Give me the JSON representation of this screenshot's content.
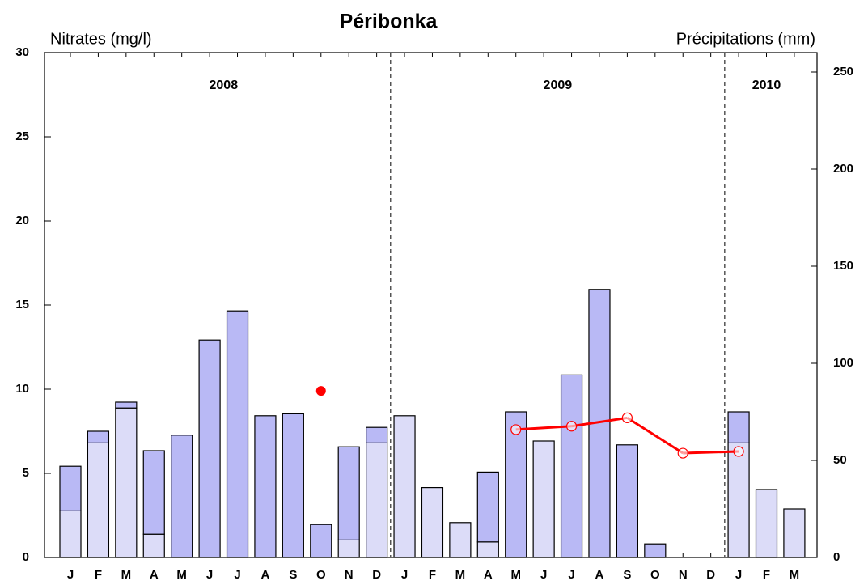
{
  "chart_data": {
    "type": "bar",
    "title": "Péribonka",
    "y_label": "Nitrates (mg/l)",
    "y2_label": "Précipitations (mm)",
    "categories": [
      "J",
      "F",
      "M",
      "A",
      "M",
      "J",
      "J",
      "A",
      "S",
      "O",
      "N",
      "D",
      "J",
      "F",
      "M",
      "A",
      "M",
      "J",
      "J",
      "A",
      "S",
      "O",
      "N",
      "D",
      "J",
      "F",
      "M"
    ],
    "year_labels": [
      "2008",
      "2009",
      "2010"
    ],
    "ylim": [
      0,
      30
    ],
    "yticks": [
      0,
      5,
      10,
      15,
      20,
      25,
      30
    ],
    "y2lim": [
      0,
      260
    ],
    "y2ticks": [
      0,
      50,
      100,
      150,
      200,
      250
    ],
    "series": [
      {
        "color": "#dcdcf8",
        "axis": "y2",
        "stack": true,
        "values": [
          24,
          59,
          77,
          12,
          0,
          0,
          0,
          0,
          0,
          0,
          9,
          59,
          73,
          36,
          18,
          8,
          0,
          60,
          0,
          0,
          0,
          0,
          0,
          0,
          59,
          35,
          25
        ]
      },
      {
        "color": "#b9b9f5",
        "axis": "y2",
        "stack": true,
        "values": [
          23,
          6,
          3,
          43,
          63,
          112,
          127,
          73,
          74,
          17,
          48,
          8,
          0,
          0,
          0,
          36,
          75,
          0,
          94,
          138,
          58,
          7,
          0,
          0,
          16,
          0,
          0
        ]
      },
      {
        "type": "scatter",
        "color": "#ff0000",
        "marker": "filled",
        "values": [
          null,
          null,
          null,
          null,
          null,
          null,
          null,
          null,
          null,
          9.9,
          null,
          null,
          null,
          null,
          null,
          null,
          null,
          null,
          null,
          null,
          null,
          null,
          null,
          null,
          null,
          null,
          null
        ]
      },
      {
        "type": "line",
        "color": "#ff0000",
        "marker": "open",
        "values": [
          null,
          null,
          null,
          null,
          null,
          null,
          null,
          null,
          null,
          null,
          null,
          null,
          null,
          null,
          null,
          null,
          7.6,
          null,
          7.8,
          null,
          8.3,
          null,
          6.2,
          null,
          6.3,
          null,
          null
        ]
      }
    ]
  }
}
